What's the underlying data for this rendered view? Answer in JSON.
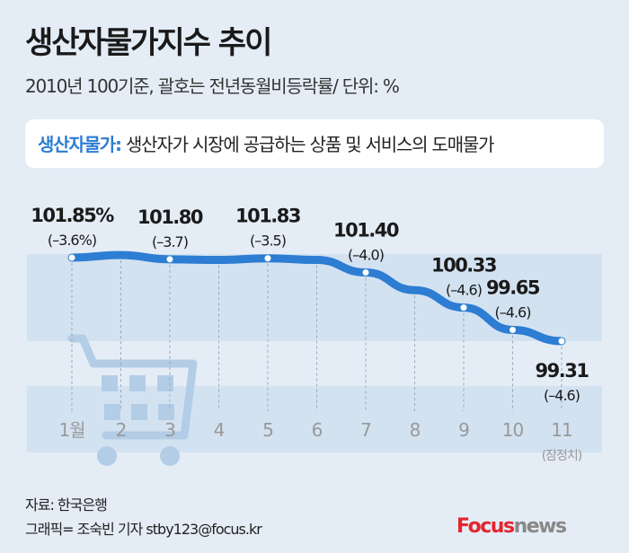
{
  "title": "생산자물가지수 추이",
  "subtitle": "2010년 100기준, 괄호는 전년동월비등락률/ 단위: %",
  "definition": {
    "term": "생산자물가:",
    "text": "생산자가 시장에 공급하는 상품 및 서비스의 도매물가"
  },
  "chart_data": {
    "type": "line",
    "title": "생산자물가지수 추이",
    "categories": [
      "1월",
      "2",
      "3",
      "4",
      "5",
      "6",
      "7",
      "8",
      "9",
      "10",
      "11"
    ],
    "category_note": "(잠정치)",
    "series": [
      {
        "name": "생산자물가지수",
        "values": [
          101.85,
          101.93,
          101.8,
          101.78,
          101.83,
          101.78,
          101.4,
          100.86,
          100.33,
          99.65,
          99.31
        ]
      }
    ],
    "labels": [
      {
        "index": 0,
        "value": "101.85%",
        "change": "(–3.6%)"
      },
      {
        "index": 2,
        "value": "101.80",
        "change": "(–3.7)"
      },
      {
        "index": 4,
        "value": "101.83",
        "change": "(–3.5)"
      },
      {
        "index": 6,
        "value": "101.40",
        "change": "(–4.0)"
      },
      {
        "index": 8,
        "value": "100.33",
        "change": "(–4.6)"
      },
      {
        "index": 9,
        "value": "99.65",
        "change": "(–4.6)"
      },
      {
        "index": 10,
        "value": "99.31",
        "change": "(–4.6)"
      }
    ],
    "ylim": [
      98.8,
      102.3
    ],
    "line_color": "#2d7dd2"
  },
  "footer": {
    "source": "자료: 한국은행",
    "credit": "그래픽= 조숙빈 기자 stby123@focus.kr"
  },
  "logo": {
    "brand": "Focus",
    "suffix": "news"
  }
}
